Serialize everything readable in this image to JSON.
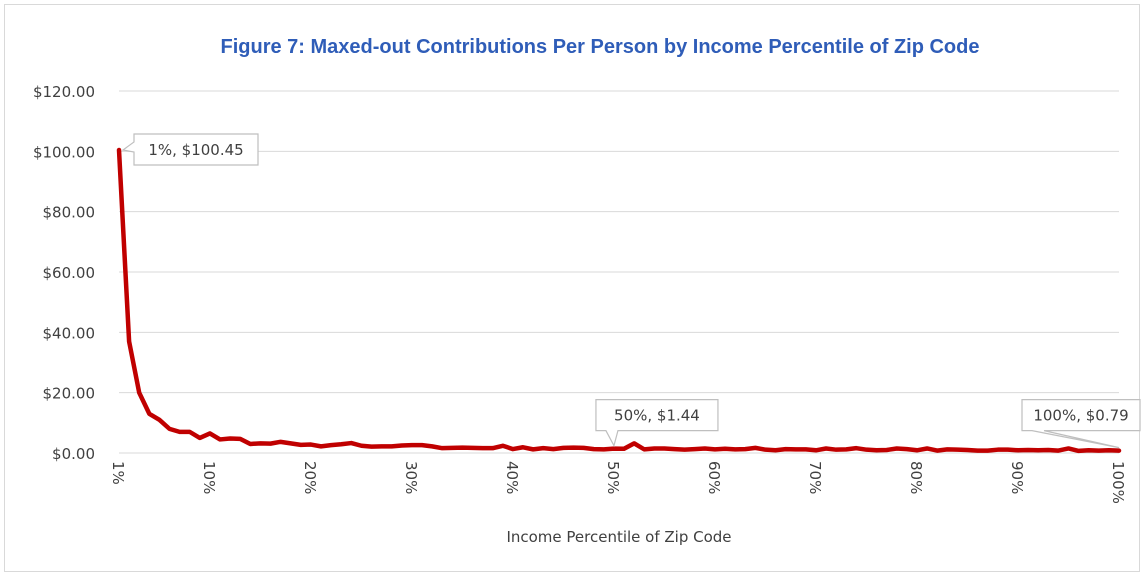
{
  "chart_data": {
    "type": "line",
    "title": "Figure 7: Maxed-out Contributions Per Person by Income Percentile of Zip Code",
    "xlabel": "Income Percentile of Zip Code",
    "ylabel": "",
    "x_range": [
      1,
      100
    ],
    "ylim": [
      0,
      120
    ],
    "y_ticks": [
      "$0.00",
      "$20.00",
      "$40.00",
      "$60.00",
      "$80.00",
      "$100.00",
      "$120.00"
    ],
    "y_tick_values": [
      0,
      20,
      40,
      60,
      80,
      100,
      120
    ],
    "x_tick_labels": [
      "1%",
      "10%",
      "20%",
      "30%",
      "40%",
      "50%",
      "60%",
      "70%",
      "80%",
      "90%",
      "100%"
    ],
    "x_tick_values": [
      1,
      10,
      20,
      30,
      40,
      50,
      60,
      70,
      80,
      90,
      100
    ],
    "grid": "horizontal",
    "series_color": "#c00000",
    "series": [
      {
        "name": "",
        "values": [
          100.45,
          37,
          20,
          13,
          11,
          8,
          7,
          7,
          5,
          6.5,
          4.5,
          4.8,
          4.7,
          3,
          3.2,
          3.1,
          3.7,
          3.2,
          2.7,
          2.8,
          2.2,
          2.6,
          2.9,
          3.3,
          2.4,
          2.1,
          2.2,
          2.2,
          2.5,
          2.6,
          2.6,
          2.2,
          1.6,
          1.7,
          1.8,
          1.7,
          1.6,
          1.6,
          2.4,
          1.3,
          1.9,
          1.2,
          1.6,
          1.3,
          1.7,
          1.8,
          1.7,
          1.3,
          1.2,
          1.44,
          1.4,
          3.2,
          1.2,
          1.5,
          1.5,
          1.3,
          1.1,
          1.3,
          1.5,
          1.2,
          1.4,
          1.2,
          1.3,
          1.7,
          1.1,
          0.9,
          1.3,
          1.2,
          1.2,
          0.9,
          1.5,
          1.1,
          1.2,
          1.6,
          1.1,
          0.9,
          1.0,
          1.5,
          1.3,
          0.9,
          1.5,
          0.8,
          1.2,
          1.1,
          1.0,
          0.8,
          0.8,
          1.1,
          1.1,
          0.9,
          1.0,
          0.9,
          1.0,
          0.8,
          1.5,
          0.7,
          0.9,
          0.8,
          0.9,
          0.79
        ]
      }
    ],
    "annotations": [
      {
        "x": 1,
        "y": 100.45,
        "label": "1%, $100.45"
      },
      {
        "x": 50,
        "y": 1.44,
        "label": "50%, $1.44"
      },
      {
        "x": 100,
        "y": 0.79,
        "label": "100%, $0.79"
      }
    ]
  }
}
